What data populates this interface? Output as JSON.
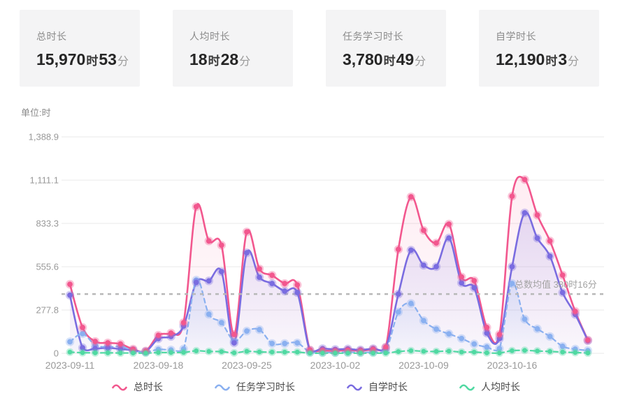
{
  "stat_cards": [
    {
      "label": "总时长",
      "hours": "15,970",
      "unit_hour": "时",
      "minutes": "53",
      "unit_minute": "分"
    },
    {
      "label": "人均时长",
      "hours": "18",
      "unit_hour": "时",
      "minutes": "28",
      "unit_minute": "分"
    },
    {
      "label": "任务学习时长",
      "hours": "3,780",
      "unit_hour": "时",
      "minutes": "49",
      "unit_minute": "分"
    },
    {
      "label": "自学时长",
      "hours": "12,190",
      "unit_hour": "时",
      "minutes": "3",
      "unit_minute": "分"
    }
  ],
  "unit_label": "单位:时",
  "legend": [
    {
      "label": "总时长",
      "color": "#f2578e"
    },
    {
      "label": "任务学习时长",
      "color": "#8ab0f0"
    },
    {
      "label": "自学时长",
      "color": "#7a6ce0"
    },
    {
      "label": "人均时长",
      "color": "#50d9a2"
    }
  ],
  "chart_data": {
    "type": "line",
    "title": "",
    "ylabel": "单位:时",
    "xlabel": "",
    "smooth": true,
    "grid": true,
    "legend_position": "bottom",
    "ylim": [
      0,
      1388.9
    ],
    "y_ticks": [
      "1,388.9",
      "1,111.1",
      "833.3",
      "555.6",
      "277.8",
      "0"
    ],
    "y_tick_values": [
      1388.9,
      1111.1,
      833.3,
      555.6,
      277.8,
      0
    ],
    "x_tick_labels": [
      "2023-09-11",
      "2023-09-18",
      "2023-09-25",
      "2023-10-02",
      "2023-10-09",
      "2023-10-16"
    ],
    "x_tick_indices": [
      0,
      7,
      14,
      21,
      28,
      35
    ],
    "mean_line": {
      "label": "总数均值 380时16分",
      "value": 380.27,
      "color": "#b8b8b8",
      "label_color": "#a3a3a3"
    },
    "x": [
      "2023-09-11",
      "2023-09-12",
      "2023-09-13",
      "2023-09-14",
      "2023-09-15",
      "2023-09-16",
      "2023-09-17",
      "2023-09-18",
      "2023-09-19",
      "2023-09-20",
      "2023-09-21",
      "2023-09-22",
      "2023-09-23",
      "2023-09-24",
      "2023-09-25",
      "2023-09-26",
      "2023-09-27",
      "2023-09-28",
      "2023-09-29",
      "2023-09-30",
      "2023-10-01",
      "2023-10-02",
      "2023-10-03",
      "2023-10-04",
      "2023-10-05",
      "2023-10-06",
      "2023-10-07",
      "2023-10-08",
      "2023-10-09",
      "2023-10-10",
      "2023-10-11",
      "2023-10-12",
      "2023-10-13",
      "2023-10-14",
      "2023-10-15",
      "2023-10-16",
      "2023-10-17",
      "2023-10-18",
      "2023-10-19",
      "2023-10-20",
      "2023-10-21",
      "2023-10-22"
    ],
    "series": [
      {
        "name": "总时长",
        "color": "#f2578e",
        "dash": "solid",
        "fill_opacity": 0.07,
        "values": [
          443,
          166,
          76,
          67,
          60,
          27,
          15,
          116,
          130,
          197,
          941,
          721,
          694,
          121,
          779,
          542,
          501,
          448,
          439,
          22,
          18,
          15,
          20,
          16,
          25,
          40,
          667,
          1004,
          789,
          708,
          829,
          490,
          466,
          166,
          121,
          1008,
          1115,
          887,
          721,
          502,
          269,
          85
        ]
      },
      {
        "name": "任务学习时长",
        "color": "#8ab0f0",
        "dash": "dashed",
        "fill_opacity": 0.14,
        "values": [
          74,
          126,
          54,
          40,
          45,
          18,
          8,
          25,
          22,
          28,
          470,
          251,
          197,
          80,
          143,
          152,
          63,
          63,
          67,
          8,
          6,
          5,
          8,
          6,
          8,
          15,
          265,
          320,
          210,
          155,
          125,
          95,
          60,
          40,
          30,
          448,
          219,
          157,
          108,
          45,
          27,
          18
        ]
      },
      {
        "name": "自学时长",
        "color": "#7a6ce0",
        "dash": "solid",
        "fill_opacity": 0.12,
        "values": [
          373,
          36,
          31,
          35,
          28,
          20,
          12,
          94,
          108,
          175,
          455,
          465,
          524,
          67,
          645,
          488,
          448,
          399,
          390,
          18,
          30,
          25,
          28,
          22,
          30,
          36,
          380,
          662,
          565,
          556,
          740,
          452,
          421,
          130,
          94,
          556,
          901,
          739,
          623,
          390,
          250,
          81
        ]
      },
      {
        "name": "人均时长",
        "color": "#50d9a2",
        "dash": "dashed",
        "fill_opacity": 0,
        "values": [
          8,
          4,
          3,
          3,
          2,
          2,
          1,
          5,
          5,
          6,
          16,
          12,
          11,
          3,
          13,
          9,
          8,
          8,
          8,
          1,
          1,
          1,
          1,
          1,
          1,
          2,
          11,
          17,
          13,
          12,
          14,
          8,
          8,
          3,
          2,
          17,
          19,
          15,
          12,
          8,
          5,
          2
        ]
      }
    ]
  }
}
